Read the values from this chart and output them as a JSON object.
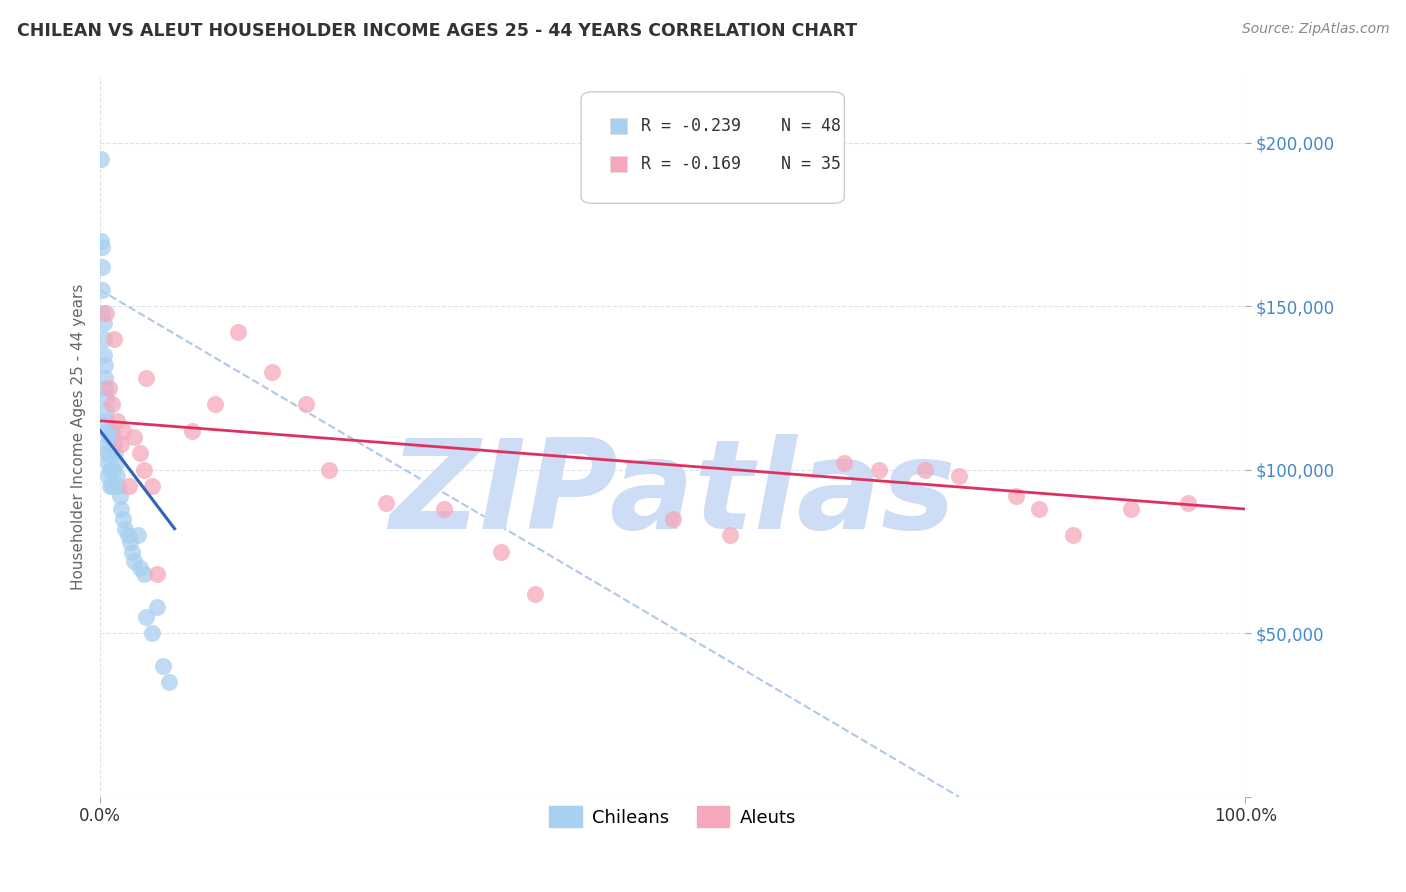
{
  "title": "CHILEAN VS ALEUT HOUSEHOLDER INCOME AGES 25 - 44 YEARS CORRELATION CHART",
  "source": "Source: ZipAtlas.com",
  "ylabel": "Householder Income Ages 25 - 44 years",
  "xlim": [
    0.0,
    1.0
  ],
  "ylim": [
    0,
    220000
  ],
  "chilean_color": "#a8d0f0",
  "aleut_color": "#f5a8bc",
  "chilean_line_color": "#3060c0",
  "aleut_line_color": "#e03060",
  "dash_color": "#b0c8e8",
  "chilean_r": -0.239,
  "chilean_n": 48,
  "aleut_r": -0.169,
  "aleut_n": 35,
  "watermark_color": "#ccddf5",
  "ytick_color": "#4488cc",
  "chilean_x": [
    0.001,
    0.001,
    0.002,
    0.002,
    0.002,
    0.002,
    0.003,
    0.003,
    0.003,
    0.004,
    0.004,
    0.004,
    0.005,
    0.005,
    0.005,
    0.006,
    0.006,
    0.006,
    0.007,
    0.007,
    0.008,
    0.008,
    0.009,
    0.009,
    0.01,
    0.01,
    0.011,
    0.012,
    0.013,
    0.014,
    0.015,
    0.016,
    0.017,
    0.018,
    0.02,
    0.022,
    0.024,
    0.026,
    0.028,
    0.03,
    0.033,
    0.035,
    0.038,
    0.04,
    0.045,
    0.05,
    0.055,
    0.06
  ],
  "chilean_y": [
    195000,
    170000,
    168000,
    162000,
    155000,
    148000,
    145000,
    140000,
    135000,
    132000,
    128000,
    125000,
    122000,
    118000,
    115000,
    112000,
    108000,
    105000,
    102000,
    98000,
    110000,
    105000,
    100000,
    95000,
    112000,
    95000,
    100000,
    108000,
    105000,
    102000,
    98000,
    95000,
    92000,
    88000,
    85000,
    82000,
    80000,
    78000,
    75000,
    72000,
    80000,
    70000,
    68000,
    55000,
    50000,
    58000,
    40000,
    35000
  ],
  "aleut_x": [
    0.005,
    0.008,
    0.01,
    0.012,
    0.015,
    0.018,
    0.02,
    0.025,
    0.03,
    0.035,
    0.038,
    0.04,
    0.045,
    0.05,
    0.08,
    0.1,
    0.12,
    0.15,
    0.18,
    0.2,
    0.25,
    0.3,
    0.35,
    0.38,
    0.5,
    0.55,
    0.65,
    0.68,
    0.72,
    0.75,
    0.8,
    0.82,
    0.85,
    0.9,
    0.95
  ],
  "aleut_y": [
    148000,
    125000,
    120000,
    140000,
    115000,
    108000,
    112000,
    95000,
    110000,
    105000,
    100000,
    128000,
    95000,
    68000,
    112000,
    120000,
    142000,
    130000,
    120000,
    100000,
    90000,
    88000,
    75000,
    62000,
    85000,
    80000,
    102000,
    100000,
    100000,
    98000,
    92000,
    88000,
    80000,
    88000,
    90000
  ],
  "chilean_line_x": [
    0.0,
    0.065
  ],
  "chilean_line_y": [
    112000,
    82000
  ],
  "aleut_line_x": [
    0.0,
    1.0
  ],
  "aleut_line_y": [
    115000,
    88000
  ],
  "dash_line_x": [
    0.0,
    0.75
  ],
  "dash_line_y": [
    155000,
    0
  ]
}
